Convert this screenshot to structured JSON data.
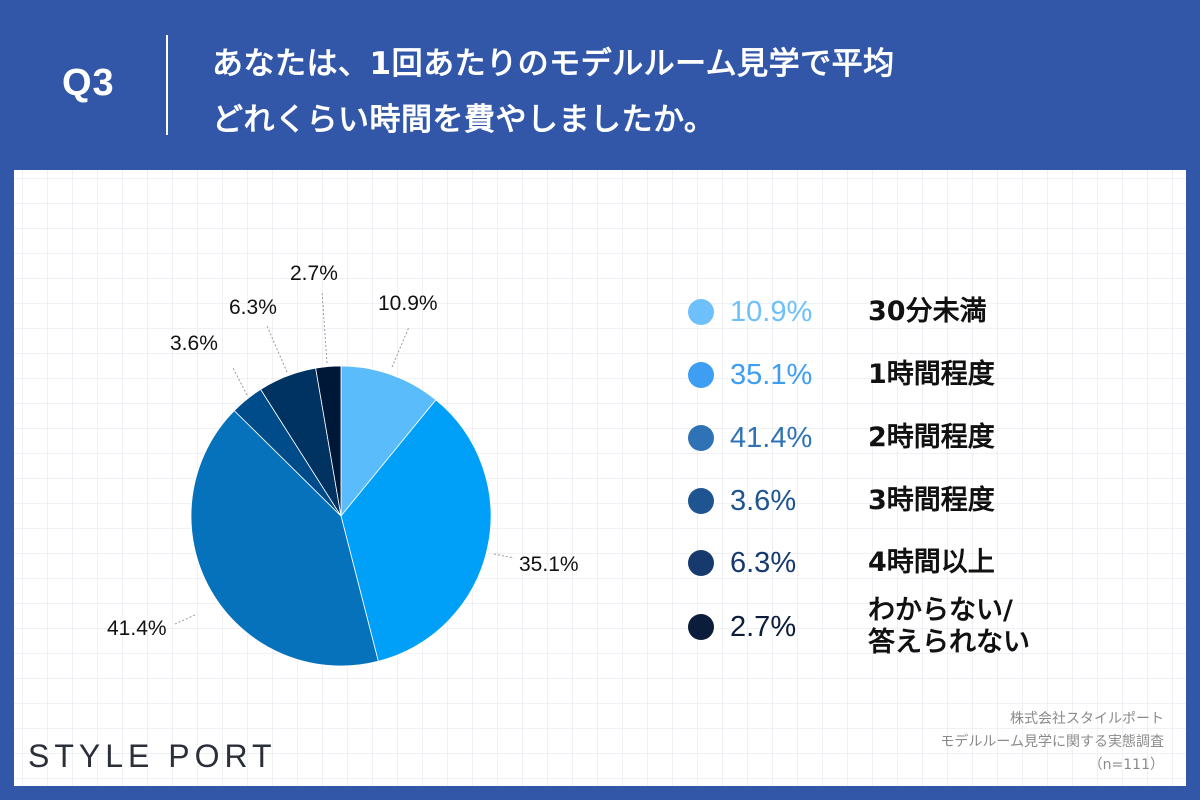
{
  "header": {
    "question_number": "Q3",
    "question_line1": "あなたは、1回あたりのモデルルーム見学で平均",
    "question_line2": "どれくらい時間を費やしましたか。"
  },
  "colors": {
    "frame": "#3257a8",
    "panel": "#ffffff",
    "slices": [
      "#5bbcfb",
      "#00a0f8",
      "#0672bb",
      "#004c8a",
      "#003262",
      "#001838"
    ],
    "legend_dots": [
      "#6dc0fb",
      "#3d9ef3",
      "#2f73b6",
      "#1e5490",
      "#16396e",
      "#0c1c3b"
    ],
    "legend_text": [
      "#6dc0fb",
      "#3d9ef3",
      "#2f73b6",
      "#1e5490",
      "#16396e",
      "#0c1c3b"
    ]
  },
  "chart_data": {
    "type": "pie",
    "title": "あなたは、1回あたりのモデルルーム見学で平均どれくらい時間を費やしましたか。",
    "start_angle": "12 o'clock, clockwise",
    "categories": [
      "30分未満",
      "1時間程度",
      "2時間程度",
      "3時間程度",
      "4時間以上",
      "わからない/答えられない"
    ],
    "values": [
      10.9,
      35.1,
      41.4,
      3.6,
      6.3,
      2.7
    ],
    "labels": [
      "10.9%",
      "35.1%",
      "41.4%",
      "3.6%",
      "6.3%",
      "2.7%"
    ],
    "legend_position": "right",
    "n": 111
  },
  "legend": [
    {
      "pct": "10.9%",
      "category": "30分未満"
    },
    {
      "pct": "35.1%",
      "category": "1時間程度"
    },
    {
      "pct": "41.4%",
      "category": "2時間程度"
    },
    {
      "pct": "3.6%",
      "category": "3時間程度"
    },
    {
      "pct": "6.3%",
      "category": "4時間以上"
    },
    {
      "pct": "2.7%",
      "category_line1": "わからない/",
      "category_line2": "答えられない"
    }
  ],
  "footer": {
    "logo": "STYLE PORT",
    "source_line1": "株式会社スタイルポート",
    "source_line2": "モデルルーム見学に関する実態調査",
    "source_line3": "（n=111）"
  }
}
